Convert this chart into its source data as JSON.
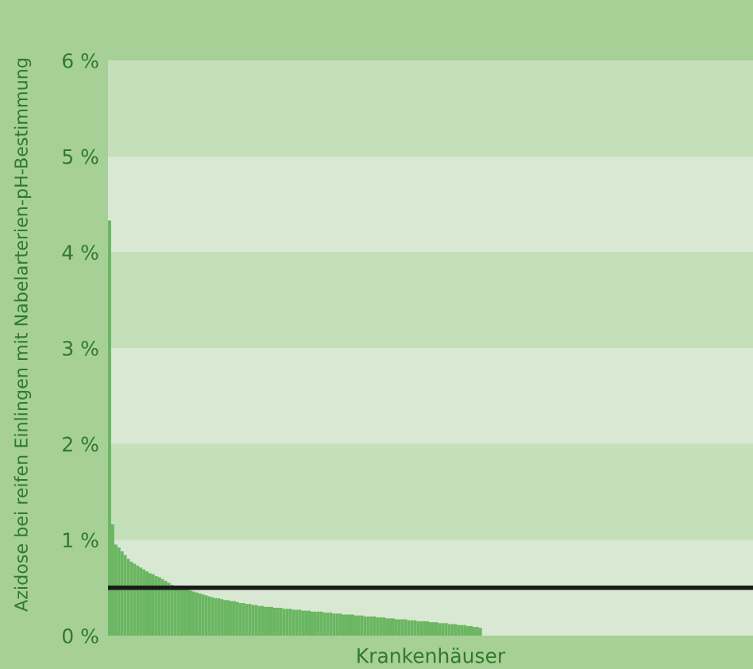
{
  "chart_data": {
    "type": "bar",
    "ylabel": "Azidose bei reifen Einlingen mit Nabelarterien-pH-Bestimmung",
    "xlabel": "Krankenhäuser",
    "categories": [
      null,
      null,
      null,
      null,
      null,
      null,
      null,
      null,
      null,
      null,
      null,
      null,
      null,
      null,
      null,
      null,
      null,
      null,
      null,
      null,
      null,
      null,
      null,
      null,
      null,
      null,
      null,
      null,
      null,
      null,
      null,
      null,
      null,
      null,
      null,
      null,
      null,
      null,
      null,
      null,
      null,
      null,
      null,
      null,
      null,
      null,
      null,
      null,
      null,
      null,
      null,
      null,
      null,
      null,
      null,
      null,
      null,
      null,
      null,
      null,
      null,
      null,
      null,
      null,
      null,
      null,
      null,
      null,
      null,
      null,
      null,
      null,
      null,
      null,
      null,
      null,
      null,
      null,
      null,
      null,
      null,
      null,
      null,
      null,
      null,
      null,
      null,
      null,
      null,
      null,
      null,
      null,
      null,
      null,
      null,
      null,
      null,
      null,
      null,
      null,
      null,
      null,
      null,
      null,
      null,
      null,
      null,
      null,
      null,
      null,
      null,
      null,
      null,
      null,
      null,
      null,
      null,
      null,
      null,
      null,
      null,
      null,
      null,
      null,
      null,
      null,
      null,
      null,
      null,
      null,
      null,
      null,
      null,
      null,
      null,
      null,
      null,
      null,
      null,
      null,
      null,
      null,
      null,
      null,
      null,
      null,
      null,
      null,
      null,
      null,
      null,
      null,
      null,
      null,
      null,
      null,
      null,
      null,
      null,
      null,
      null,
      null,
      null,
      null,
      null,
      null,
      null,
      null,
      null,
      null,
      null,
      null,
      null,
      null,
      null,
      null,
      null,
      null,
      null,
      null,
      null,
      null,
      null,
      null,
      null,
      null,
      null,
      null,
      null,
      null,
      null,
      null,
      null,
      null,
      null,
      null,
      null,
      null,
      null,
      null,
      null,
      null,
      null,
      null,
      null,
      null,
      null
    ],
    "values": [
      4.33,
      1.16,
      0.95,
      0.92,
      0.88,
      0.84,
      0.8,
      0.77,
      0.75,
      0.73,
      0.71,
      0.69,
      0.67,
      0.65,
      0.64,
      0.62,
      0.61,
      0.59,
      0.57,
      0.55,
      0.53,
      0.52,
      0.51,
      0.5,
      0.49,
      0.48,
      0.47,
      0.46,
      0.45,
      0.44,
      0.43,
      0.42,
      0.41,
      0.4,
      0.39,
      0.39,
      0.38,
      0.37,
      0.37,
      0.36,
      0.36,
      0.35,
      0.34,
      0.34,
      0.33,
      0.33,
      0.32,
      0.32,
      0.31,
      0.31,
      0.3,
      0.3,
      0.3,
      0.29,
      0.29,
      0.29,
      0.28,
      0.28,
      0.28,
      0.27,
      0.27,
      0.27,
      0.26,
      0.26,
      0.26,
      0.25,
      0.25,
      0.25,
      0.25,
      0.24,
      0.24,
      0.24,
      0.23,
      0.23,
      0.23,
      0.22,
      0.22,
      0.22,
      0.22,
      0.21,
      0.21,
      0.21,
      0.2,
      0.2,
      0.2,
      0.2,
      0.19,
      0.19,
      0.19,
      0.18,
      0.18,
      0.18,
      0.17,
      0.17,
      0.17,
      0.17,
      0.16,
      0.16,
      0.16,
      0.15,
      0.15,
      0.15,
      0.15,
      0.14,
      0.14,
      0.14,
      0.13,
      0.13,
      0.13,
      0.12,
      0.12,
      0.12,
      0.11,
      0.11,
      0.11,
      0.1,
      0.1,
      0.09,
      0.09,
      0.08,
      null,
      null,
      null,
      null,
      null,
      null,
      null,
      null,
      null,
      null,
      null,
      null,
      null,
      null,
      null,
      null,
      null,
      null,
      null,
      null,
      null,
      null,
      null,
      null,
      null,
      null,
      null,
      null,
      null,
      null,
      null,
      null,
      null,
      null,
      null,
      null,
      null,
      null,
      null,
      null,
      null,
      null,
      null,
      null,
      null,
      null,
      null,
      null,
      null,
      null,
      null,
      null,
      null,
      null,
      null,
      null,
      null,
      null,
      null,
      null,
      null,
      null,
      null,
      null,
      null,
      null,
      null,
      null,
      null,
      null,
      null,
      null,
      null,
      null,
      null,
      null,
      null,
      null,
      null,
      null,
      null,
      null,
      null,
      null,
      null,
      null,
      null
    ],
    "color": "#6ab661",
    "ylim": [
      0,
      6
    ],
    "yticks": [
      {
        "value": 0,
        "label": "0 %"
      },
      {
        "value": 1,
        "label": "1 %"
      },
      {
        "value": 2,
        "label": "2 %"
      },
      {
        "value": 3,
        "label": "3 %"
      },
      {
        "value": 4,
        "label": "4 %"
      },
      {
        "value": 5,
        "label": "5 %"
      },
      {
        "value": 6,
        "label": "6 %"
      }
    ],
    "bands": [
      {
        "axis": "y",
        "from": 0,
        "to": 1,
        "color": "#d8e8d2"
      },
      {
        "axis": "y",
        "from": 1,
        "to": 2,
        "color": "#c5dfbb"
      },
      {
        "axis": "y",
        "from": 2,
        "to": 3,
        "color": "#d8e8d2"
      },
      {
        "axis": "y",
        "from": 3,
        "to": 4,
        "color": "#c5dfbb"
      },
      {
        "axis": "y",
        "from": 4,
        "to": 5,
        "color": "#d8e8d2"
      },
      {
        "axis": "y",
        "from": 5,
        "to": 6,
        "color": "#c5dfbb"
      }
    ],
    "ref_lines": [
      {
        "axis": "y",
        "value": 0.5,
        "color": "#1a1a1a",
        "line_style": "solid"
      }
    ],
    "grid": false,
    "legend": false
  }
}
